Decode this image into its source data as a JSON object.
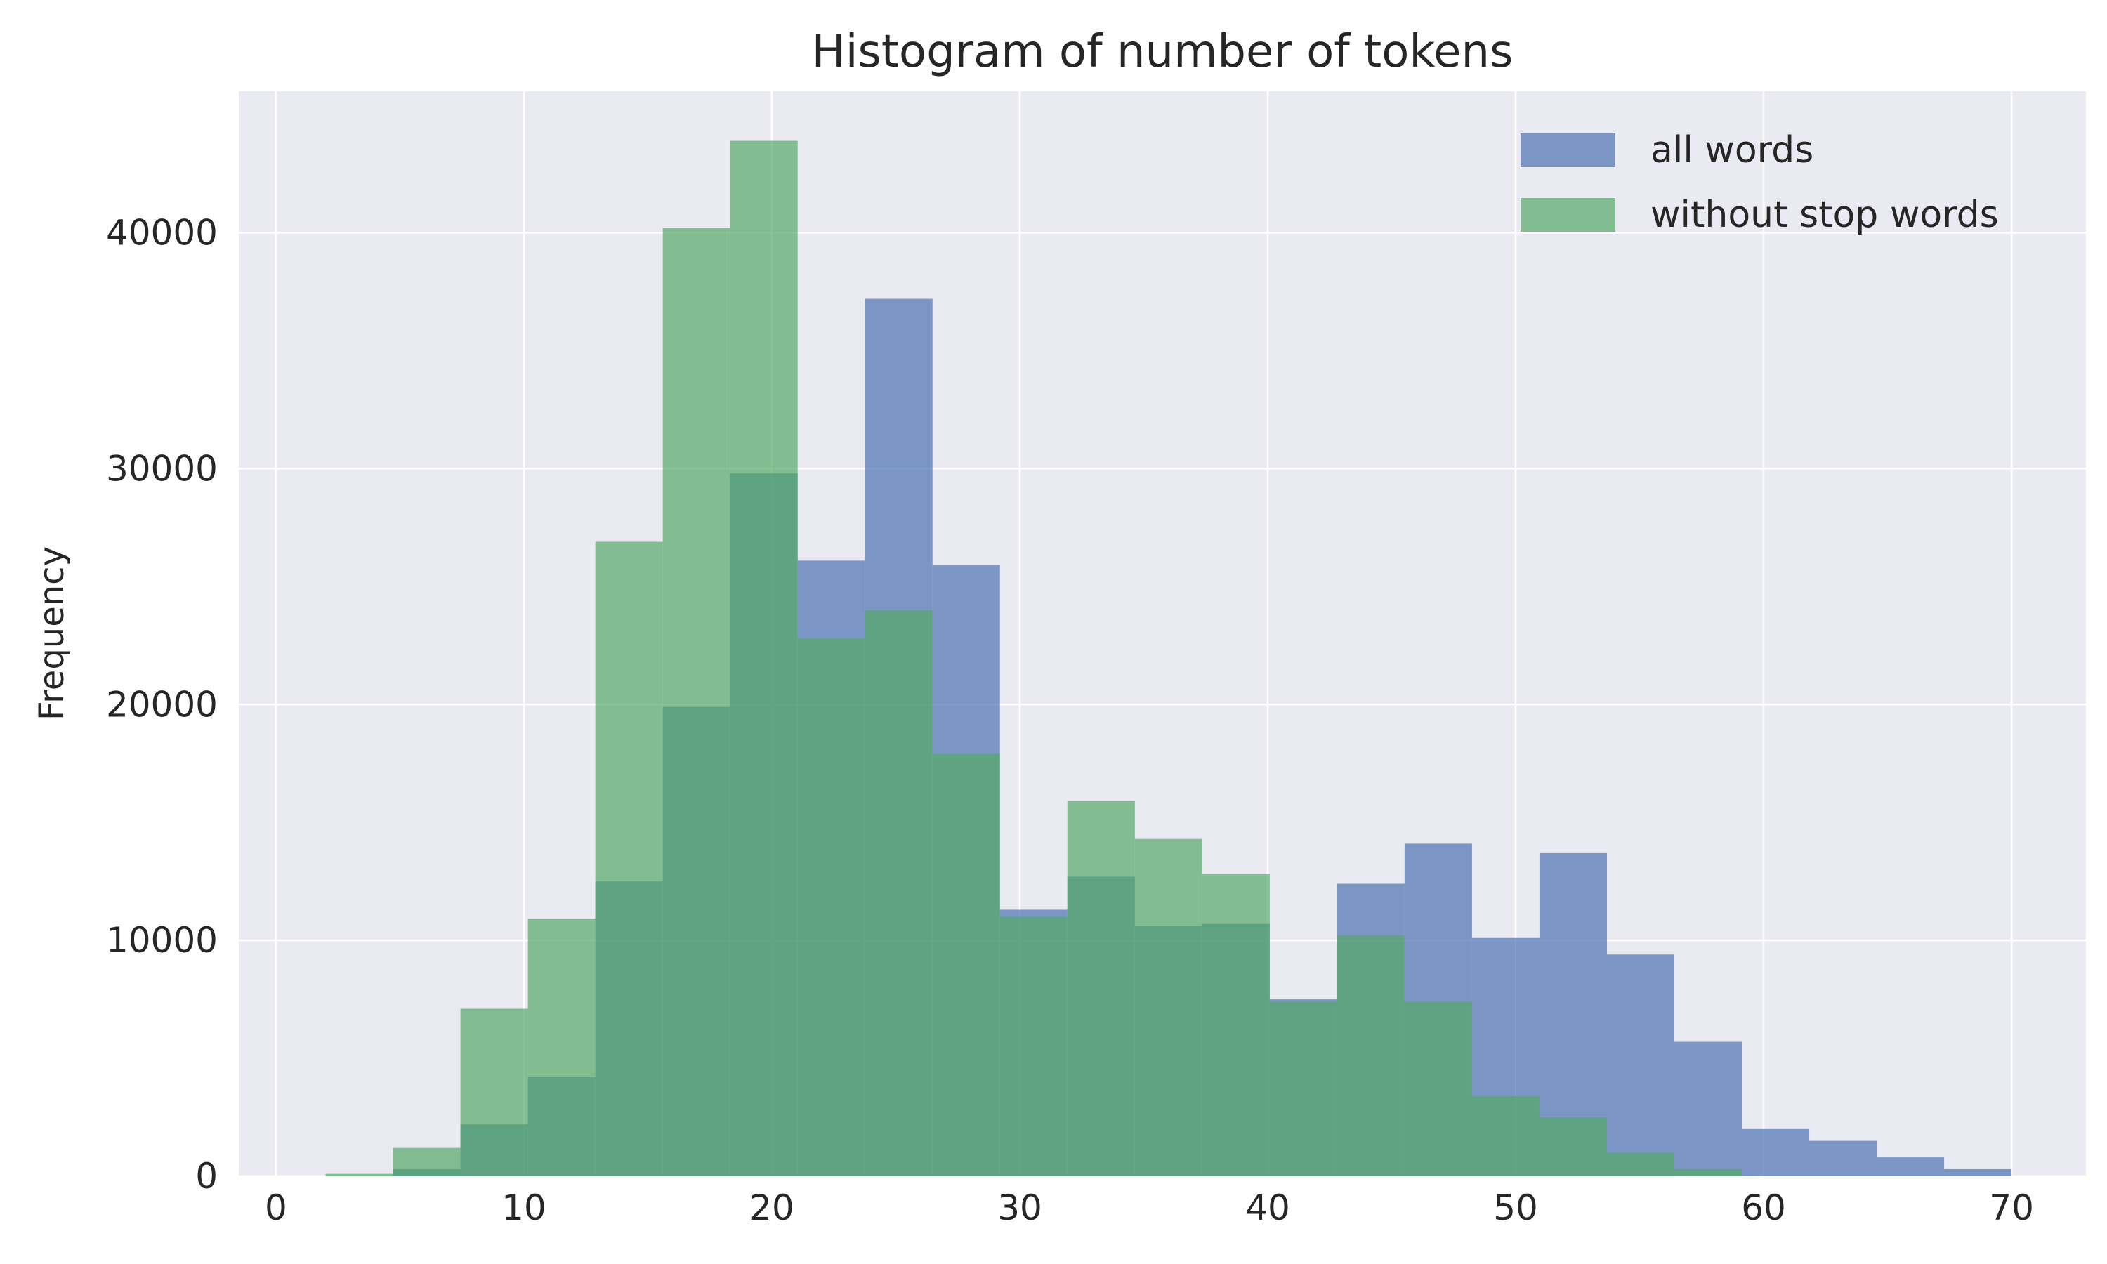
{
  "chart_data": {
    "type": "bar",
    "title": "Histogram of number of tokens",
    "xlabel": "",
    "ylabel": "Frequency",
    "xlim": [
      -1.5,
      73
    ],
    "ylim": [
      0,
      46000
    ],
    "xticks": [
      0,
      10,
      20,
      30,
      40,
      50,
      60,
      70
    ],
    "yticks": [
      0,
      10000,
      20000,
      30000,
      40000
    ],
    "grid": true,
    "legend_position": "top-right",
    "bin_edges": [
      2,
      4.72,
      7.44,
      10.16,
      12.88,
      15.6,
      18.32,
      21.04,
      23.76,
      26.48,
      29.2,
      31.92,
      34.64,
      37.36,
      40.08,
      42.8,
      45.52,
      48.24,
      50.96,
      53.68,
      56.4,
      59.12,
      61.84,
      64.56,
      67.28,
      70
    ],
    "series": [
      {
        "name": "all words",
        "color": "#4c72b0",
        "values": [
          0,
          300,
          2200,
          4200,
          12500,
          19900,
          29800,
          26100,
          37200,
          25900,
          11300,
          12700,
          10600,
          10700,
          7500,
          12400,
          14100,
          10100,
          13700,
          9400,
          5700,
          2000,
          1500,
          800,
          300
        ]
      },
      {
        "name": "without stop words",
        "color": "#55a868",
        "values": [
          100,
          1200,
          7100,
          10900,
          26900,
          40200,
          43900,
          22800,
          24000,
          17900,
          11000,
          15900,
          14300,
          12800,
          7400,
          10200,
          7400,
          3400,
          2500,
          1000,
          300,
          0,
          0,
          0,
          0
        ]
      }
    ]
  }
}
